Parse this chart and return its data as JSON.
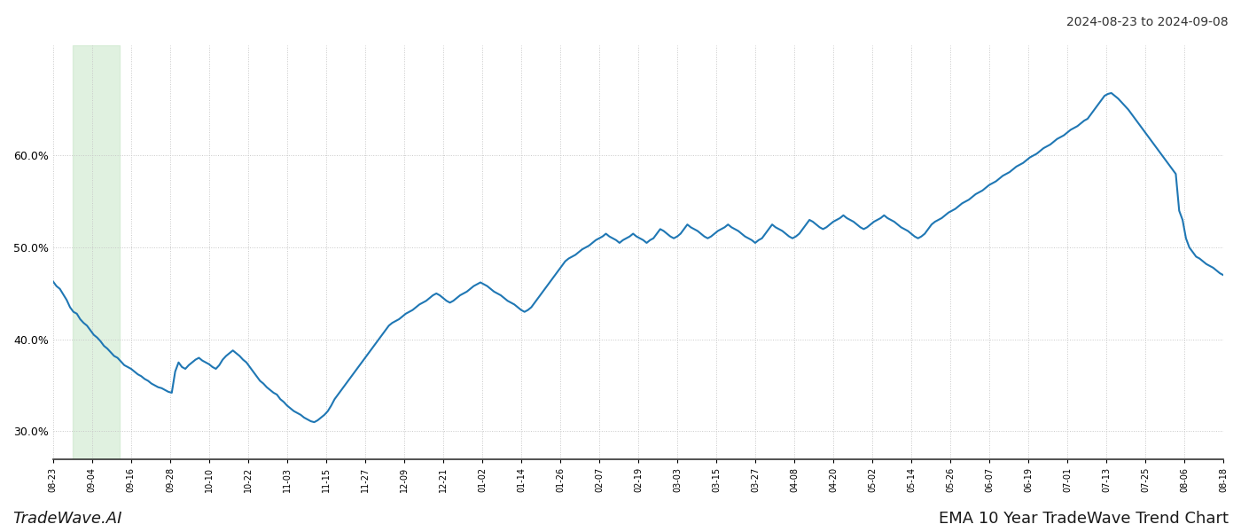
{
  "title_top_right": "2024-08-23 to 2024-09-08",
  "bottom_left": "TradeWave.AI",
  "bottom_right": "EMA 10 Year TradeWave Trend Chart",
  "line_color": "#1f77b4",
  "line_width": 1.5,
  "background_color": "#ffffff",
  "grid_color": "#c8c8c8",
  "grid_style": "dotted",
  "highlight_color": "#c8e6c8",
  "highlight_alpha": 0.55,
  "ylim": [
    0.27,
    0.72
  ],
  "yticks": [
    0.3,
    0.4,
    0.5,
    0.6
  ],
  "x_labels": [
    "08-23",
    "09-04",
    "09-16",
    "09-28",
    "10-10",
    "10-22",
    "11-03",
    "11-15",
    "11-27",
    "12-09",
    "12-21",
    "01-02",
    "01-14",
    "01-26",
    "02-07",
    "02-19",
    "03-03",
    "03-15",
    "03-27",
    "04-08",
    "04-20",
    "05-02",
    "05-14",
    "05-26",
    "06-07",
    "06-19",
    "07-01",
    "07-13",
    "07-25",
    "08-06",
    "08-18"
  ],
  "highlight_x_end_label": "09-10",
  "values": [
    0.463,
    0.458,
    0.455,
    0.449,
    0.443,
    0.435,
    0.43,
    0.428,
    0.422,
    0.418,
    0.415,
    0.41,
    0.405,
    0.402,
    0.398,
    0.393,
    0.39,
    0.386,
    0.382,
    0.38,
    0.376,
    0.372,
    0.37,
    0.368,
    0.365,
    0.362,
    0.36,
    0.357,
    0.355,
    0.352,
    0.35,
    0.348,
    0.347,
    0.345,
    0.343,
    0.342,
    0.365,
    0.375,
    0.37,
    0.368,
    0.372,
    0.375,
    0.378,
    0.38,
    0.377,
    0.375,
    0.373,
    0.37,
    0.368,
    0.372,
    0.378,
    0.382,
    0.385,
    0.388,
    0.385,
    0.382,
    0.378,
    0.375,
    0.37,
    0.365,
    0.36,
    0.355,
    0.352,
    0.348,
    0.345,
    0.342,
    0.34,
    0.335,
    0.332,
    0.328,
    0.325,
    0.322,
    0.32,
    0.318,
    0.315,
    0.313,
    0.311,
    0.31,
    0.312,
    0.315,
    0.318,
    0.322,
    0.328,
    0.335,
    0.34,
    0.345,
    0.35,
    0.355,
    0.36,
    0.365,
    0.37,
    0.375,
    0.38,
    0.385,
    0.39,
    0.395,
    0.4,
    0.405,
    0.41,
    0.415,
    0.418,
    0.42,
    0.422,
    0.425,
    0.428,
    0.43,
    0.432,
    0.435,
    0.438,
    0.44,
    0.442,
    0.445,
    0.448,
    0.45,
    0.448,
    0.445,
    0.442,
    0.44,
    0.442,
    0.445,
    0.448,
    0.45,
    0.452,
    0.455,
    0.458,
    0.46,
    0.462,
    0.46,
    0.458,
    0.455,
    0.452,
    0.45,
    0.448,
    0.445,
    0.442,
    0.44,
    0.438,
    0.435,
    0.432,
    0.43,
    0.432,
    0.435,
    0.44,
    0.445,
    0.45,
    0.455,
    0.46,
    0.465,
    0.47,
    0.475,
    0.48,
    0.485,
    0.488,
    0.49,
    0.492,
    0.495,
    0.498,
    0.5,
    0.502,
    0.505,
    0.508,
    0.51,
    0.512,
    0.515,
    0.512,
    0.51,
    0.508,
    0.505,
    0.508,
    0.51,
    0.512,
    0.515,
    0.512,
    0.51,
    0.508,
    0.505,
    0.508,
    0.51,
    0.515,
    0.52,
    0.518,
    0.515,
    0.512,
    0.51,
    0.512,
    0.515,
    0.52,
    0.525,
    0.522,
    0.52,
    0.518,
    0.515,
    0.512,
    0.51,
    0.512,
    0.515,
    0.518,
    0.52,
    0.522,
    0.525,
    0.522,
    0.52,
    0.518,
    0.515,
    0.512,
    0.51,
    0.508,
    0.505,
    0.508,
    0.51,
    0.515,
    0.52,
    0.525,
    0.522,
    0.52,
    0.518,
    0.515,
    0.512,
    0.51,
    0.512,
    0.515,
    0.52,
    0.525,
    0.53,
    0.528,
    0.525,
    0.522,
    0.52,
    0.522,
    0.525,
    0.528,
    0.53,
    0.532,
    0.535,
    0.532,
    0.53,
    0.528,
    0.525,
    0.522,
    0.52,
    0.522,
    0.525,
    0.528,
    0.53,
    0.532,
    0.535,
    0.532,
    0.53,
    0.528,
    0.525,
    0.522,
    0.52,
    0.518,
    0.515,
    0.512,
    0.51,
    0.512,
    0.515,
    0.52,
    0.525,
    0.528,
    0.53,
    0.532,
    0.535,
    0.538,
    0.54,
    0.542,
    0.545,
    0.548,
    0.55,
    0.552,
    0.555,
    0.558,
    0.56,
    0.562,
    0.565,
    0.568,
    0.57,
    0.572,
    0.575,
    0.578,
    0.58,
    0.582,
    0.585,
    0.588,
    0.59,
    0.592,
    0.595,
    0.598,
    0.6,
    0.602,
    0.605,
    0.608,
    0.61,
    0.612,
    0.615,
    0.618,
    0.62,
    0.622,
    0.625,
    0.628,
    0.63,
    0.632,
    0.635,
    0.638,
    0.64,
    0.645,
    0.65,
    0.655,
    0.66,
    0.665,
    0.667,
    0.668,
    0.665,
    0.662,
    0.658,
    0.654,
    0.65,
    0.645,
    0.64,
    0.635,
    0.63,
    0.625,
    0.62,
    0.615,
    0.61,
    0.605,
    0.6,
    0.595,
    0.59,
    0.585,
    0.58,
    0.54,
    0.53,
    0.51,
    0.5,
    0.495,
    0.49,
    0.488,
    0.485,
    0.482,
    0.48,
    0.478,
    0.475,
    0.472,
    0.47
  ]
}
